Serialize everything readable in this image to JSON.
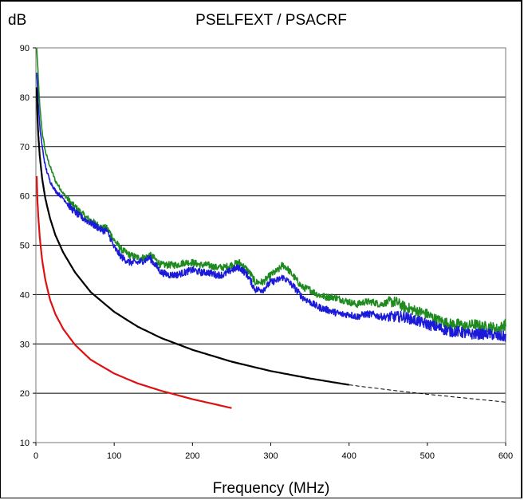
{
  "chart_data": {
    "type": "line",
    "title": "PSELFEXT / PSACRF",
    "ylabel": "dB",
    "xlabel": "Frequency (MHz)",
    "xlim": [
      0,
      600
    ],
    "ylim": [
      10,
      90
    ],
    "x_ticks": [
      0,
      100,
      200,
      300,
      400,
      500,
      600
    ],
    "y_ticks": [
      10,
      20,
      30,
      40,
      50,
      60,
      70,
      80,
      90
    ],
    "grid": "horizontal",
    "legend": "none",
    "series": [
      {
        "color": "#1f8a1f",
        "style": "solid",
        "noisy": true,
        "x": [
          1,
          3,
          5,
          8,
          12,
          18,
          25,
          35,
          45,
          55,
          65,
          75,
          85,
          90,
          95,
          100,
          110,
          120,
          130,
          140,
          145,
          150,
          160,
          170,
          180,
          190,
          200,
          210,
          220,
          230,
          240,
          250,
          260,
          270,
          275,
          280,
          290,
          300,
          310,
          315,
          320,
          330,
          340,
          350,
          360,
          370,
          380,
          390,
          400,
          410,
          420,
          430,
          440,
          450,
          460,
          470,
          480,
          490,
          500,
          510,
          520,
          530,
          540,
          550,
          560,
          570,
          580,
          590,
          600
        ],
        "y": [
          90,
          84,
          78,
          73,
          69,
          66,
          63,
          60.5,
          58.5,
          57,
          55.5,
          54.5,
          53.5,
          53.5,
          52.5,
          51,
          49,
          48,
          47.5,
          47.5,
          48,
          47.5,
          46,
          46,
          46,
          46.5,
          46.5,
          46,
          46,
          45.5,
          45.5,
          46,
          46.5,
          45,
          44,
          42.5,
          42.5,
          44,
          45,
          46,
          45.5,
          43.5,
          41.5,
          41,
          40,
          39.5,
          39.5,
          39,
          38.5,
          38,
          38.5,
          38.5,
          38,
          38.5,
          38.5,
          37.5,
          37,
          36.5,
          36,
          35,
          34.5,
          34,
          34,
          33.5,
          34,
          33.5,
          33.5,
          33,
          34
        ]
      },
      {
        "color": "#1a1ad8",
        "style": "solid",
        "noisy": true,
        "x": [
          1,
          3,
          5,
          8,
          12,
          18,
          25,
          35,
          45,
          55,
          65,
          75,
          85,
          90,
          95,
          100,
          110,
          120,
          130,
          140,
          145,
          150,
          160,
          170,
          180,
          190,
          200,
          210,
          220,
          230,
          240,
          250,
          260,
          270,
          275,
          280,
          290,
          300,
          310,
          315,
          320,
          330,
          340,
          350,
          360,
          370,
          380,
          390,
          400,
          410,
          420,
          430,
          440,
          450,
          460,
          470,
          480,
          490,
          500,
          510,
          520,
          530,
          540,
          550,
          560,
          570,
          580,
          590,
          600
        ],
        "y": [
          85,
          79,
          74,
          70,
          66,
          63,
          61,
          59.5,
          57.5,
          56,
          55,
          54,
          53,
          53,
          51.5,
          49.5,
          47.5,
          46.5,
          46.5,
          47,
          47.5,
          46.5,
          44.5,
          44,
          44,
          44.5,
          45,
          44.5,
          44.5,
          44,
          44,
          45,
          45.5,
          44,
          42.5,
          41,
          41,
          42.5,
          43,
          43.5,
          43,
          41.5,
          39.5,
          38.5,
          37.5,
          37,
          36.5,
          36,
          36,
          35.5,
          36,
          36,
          35.5,
          35.5,
          35.5,
          35.5,
          35,
          34.5,
          34,
          33.5,
          33,
          32.5,
          32.5,
          32,
          32,
          32,
          32,
          31.5,
          31.5
        ]
      },
      {
        "color": "#000000",
        "style": "solid",
        "noisy": false,
        "x": [
          1,
          2,
          3,
          5,
          8,
          12,
          18,
          25,
          35,
          50,
          70,
          100,
          130,
          160,
          200,
          250,
          300,
          350,
          400
        ],
        "y": [
          82,
          76,
          72.5,
          68,
          63.5,
          59.5,
          55.5,
          52,
          48.5,
          44.5,
          40.5,
          36.5,
          33.5,
          31.2,
          28.8,
          26.4,
          24.5,
          23,
          21.7
        ]
      },
      {
        "color": "#000000",
        "style": "dashed",
        "noisy": false,
        "x": [
          400,
          450,
          500,
          550,
          600
        ],
        "y": [
          21.7,
          20.7,
          19.8,
          19,
          18.2
        ]
      },
      {
        "color": "#dd1111",
        "style": "solid",
        "noisy": false,
        "x": [
          1,
          2,
          3,
          5,
          8,
          12,
          18,
          25,
          35,
          50,
          70,
          100,
          130,
          160,
          200,
          250
        ],
        "y": [
          64,
          59,
          56,
          51.5,
          47,
          43,
          39,
          36,
          33,
          29.8,
          26.8,
          24,
          22,
          20.5,
          18.8,
          17
        ]
      }
    ]
  }
}
